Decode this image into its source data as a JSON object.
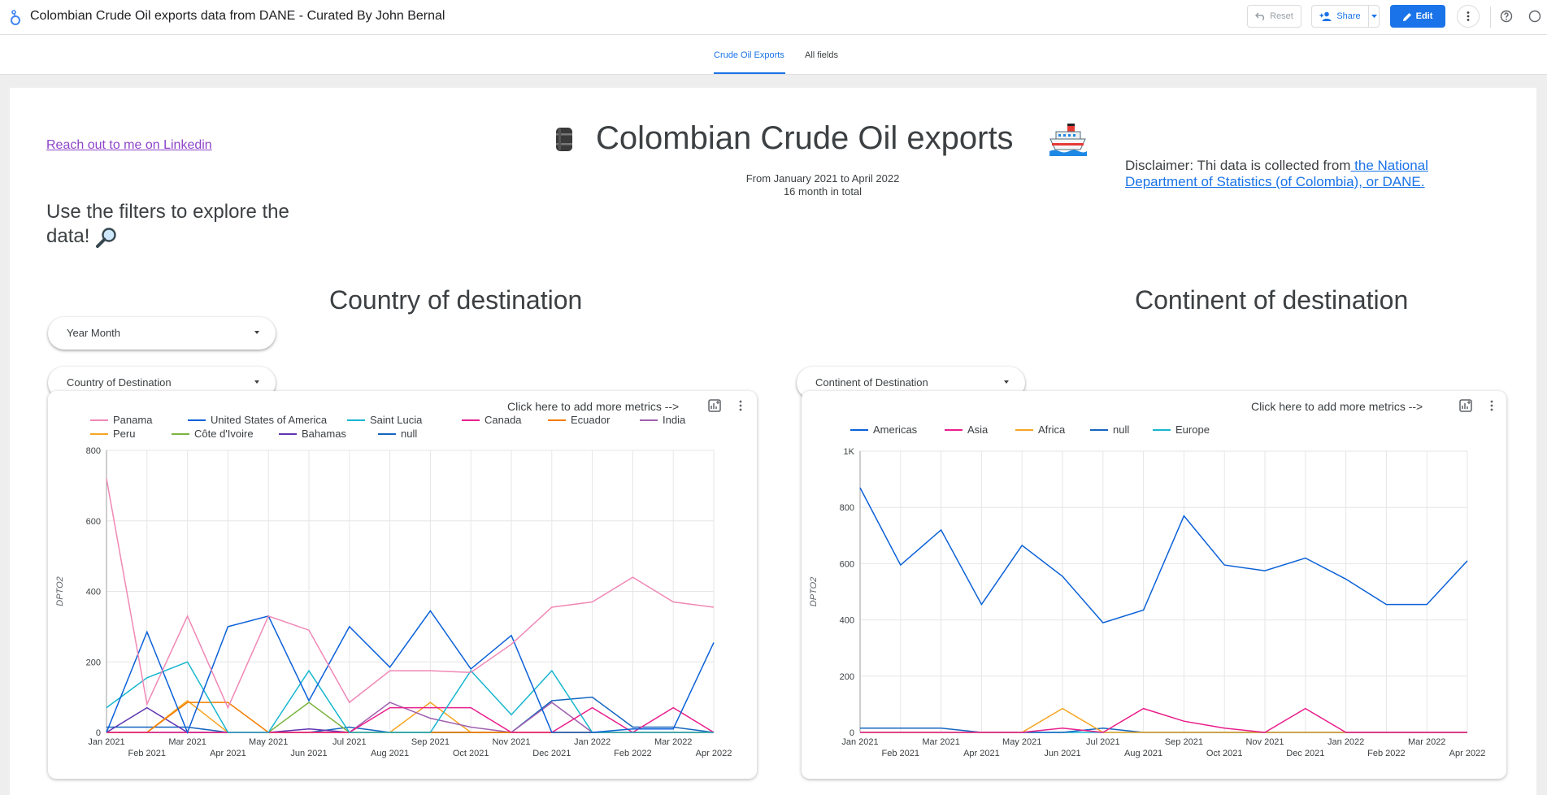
{
  "header": {
    "report_title": "Colombian Crude Oil exports data from DANE - Curated By John Bernal",
    "reset_label": "Reset",
    "share_label": "Share",
    "edit_label": "Edit"
  },
  "tabs": [
    {
      "label": "Crude Oil Exports",
      "active": true
    },
    {
      "label": "All fields",
      "active": false
    }
  ],
  "page": {
    "linkedin_link": "Reach out to me on Linkedin",
    "title": "Colombian Crude Oil exports",
    "subtitle_range": "From January 2021 to April 2022",
    "subtitle_count": "16 month in total",
    "disclaimer_prefix": "Disclaimer: Thi data is collected from",
    "disclaimer_link": " the National Department of Statistics (of Colombia), or  DANE.",
    "filter_hint": "Use the filters to explore the data!",
    "heading_country": "Country of  destination",
    "heading_continent": "Continent of destination"
  },
  "filters": {
    "year_month": "Year Month",
    "country": "Country of Destination",
    "continent": "Continent of Destination"
  },
  "cards": {
    "add_metrics_label": "Click here to add more metrics -->"
  },
  "icons": {
    "logo": "looker-studio-icon",
    "barrel": "oil-barrel-icon",
    "ship": "ship-icon",
    "magnifier": "magnifying-glass-icon"
  },
  "colors": {
    "accent": "#1a73e8",
    "link_purple": "#8e44c9"
  },
  "chart_data": [
    {
      "type": "line",
      "x": [
        "Jan 2021",
        "Feb 2021",
        "Mar 2021",
        "Apr 2021",
        "May 2021",
        "Jun 2021",
        "Jul 2021",
        "Aug 2021",
        "Sep 2021",
        "Oct 2021",
        "Nov 2021",
        "Dec 2021",
        "Jan 2022",
        "Feb 2022",
        "Mar 2022",
        "Apr 2022"
      ],
      "ylabel": "DPTO2",
      "ylim": [
        0,
        800
      ],
      "yticks": [
        "0",
        "200",
        "400",
        "600",
        "800"
      ],
      "grid": true,
      "legend": "top-left",
      "series": [
        {
          "name": "Panama",
          "color": "#f088b6",
          "values": [
            720,
            80,
            330,
            70,
            330,
            290,
            85,
            175,
            175,
            170,
            250,
            355,
            370,
            440,
            370,
            355
          ]
        },
        {
          "name": "United States of America",
          "color": "#0b61d8",
          "values": [
            0,
            285,
            0,
            300,
            330,
            90,
            300,
            185,
            345,
            180,
            275,
            0,
            0,
            10,
            10,
            255
          ]
        },
        {
          "name": "Saint Lucia",
          "color": "#17b6cf",
          "values": [
            70,
            155,
            200,
            0,
            0,
            175,
            0,
            0,
            0,
            175,
            50,
            175,
            0,
            0,
            0,
            0
          ]
        },
        {
          "name": "Canada",
          "color": "#e91e8c",
          "values": [
            0,
            0,
            0,
            0,
            0,
            0,
            0,
            70,
            70,
            70,
            0,
            0,
            70,
            0,
            70,
            0
          ]
        },
        {
          "name": "Ecuador",
          "color": "#f57c00",
          "values": [
            0,
            0,
            85,
            85,
            0,
            0,
            0,
            0,
            0,
            0,
            0,
            0,
            0,
            0,
            0,
            0
          ]
        },
        {
          "name": "India",
          "color": "#a05faf",
          "values": [
            0,
            0,
            0,
            0,
            0,
            0,
            0,
            85,
            40,
            15,
            0,
            85,
            0,
            0,
            0,
            0
          ]
        },
        {
          "name": "Peru",
          "color": "#f5a623",
          "values": [
            0,
            0,
            90,
            0,
            0,
            0,
            0,
            0,
            85,
            0,
            0,
            0,
            0,
            0,
            0,
            0
          ]
        },
        {
          "name": "Côte d'Ivoire",
          "color": "#7cb342",
          "values": [
            0,
            0,
            0,
            0,
            0,
            85,
            0,
            0,
            0,
            0,
            0,
            0,
            0,
            0,
            0,
            0
          ]
        },
        {
          "name": "Bahamas",
          "color": "#5e35b1",
          "values": [
            0,
            70,
            0,
            0,
            0,
            10,
            0,
            0,
            0,
            0,
            0,
            0,
            0,
            0,
            0,
            0
          ]
        },
        {
          "name": "null",
          "color": "#1565c0",
          "values": [
            15,
            15,
            15,
            0,
            0,
            0,
            15,
            0,
            0,
            0,
            0,
            90,
            100,
            15,
            15,
            0
          ]
        }
      ]
    },
    {
      "type": "line",
      "x": [
        "Jan 2021",
        "Feb 2021",
        "Mar 2021",
        "Apr 2021",
        "May 2021",
        "Jun 2021",
        "Jul 2021",
        "Aug 2021",
        "Sep 2021",
        "Oct 2021",
        "Nov 2021",
        "Dec 2021",
        "Jan 2022",
        "Feb 2022",
        "Mar 2022",
        "Apr 2022"
      ],
      "ylabel": "DPTO2",
      "ylim": [
        0,
        1000
      ],
      "yticks": [
        "0",
        "200",
        "400",
        "600",
        "800",
        "1K"
      ],
      "grid": true,
      "legend": "top-left",
      "series": [
        {
          "name": "Americas",
          "color": "#0b61d8",
          "values": [
            870,
            595,
            720,
            455,
            665,
            555,
            390,
            435,
            770,
            595,
            575,
            620,
            545,
            455,
            455,
            610
          ]
        },
        {
          "name": "Asia",
          "color": "#e91e8c",
          "values": [
            0,
            0,
            0,
            0,
            0,
            15,
            0,
            85,
            40,
            15,
            0,
            85,
            0,
            0,
            0,
            0
          ]
        },
        {
          "name": "Africa",
          "color": "#f5a623",
          "values": [
            0,
            0,
            0,
            0,
            0,
            85,
            0,
            0,
            0,
            0,
            0,
            0,
            0,
            0,
            0,
            0
          ]
        },
        {
          "name": "null",
          "color": "#1565c0",
          "values": [
            15,
            15,
            15,
            0,
            0,
            0,
            15,
            0,
            0,
            0,
            0,
            0,
            0,
            0,
            0,
            0
          ]
        },
        {
          "name": "Europe",
          "color": "#17b6cf",
          "values": [
            0,
            0,
            0,
            0,
            0,
            0,
            0,
            0,
            0,
            0,
            0,
            0,
            0,
            0,
            0,
            0
          ]
        }
      ]
    }
  ]
}
